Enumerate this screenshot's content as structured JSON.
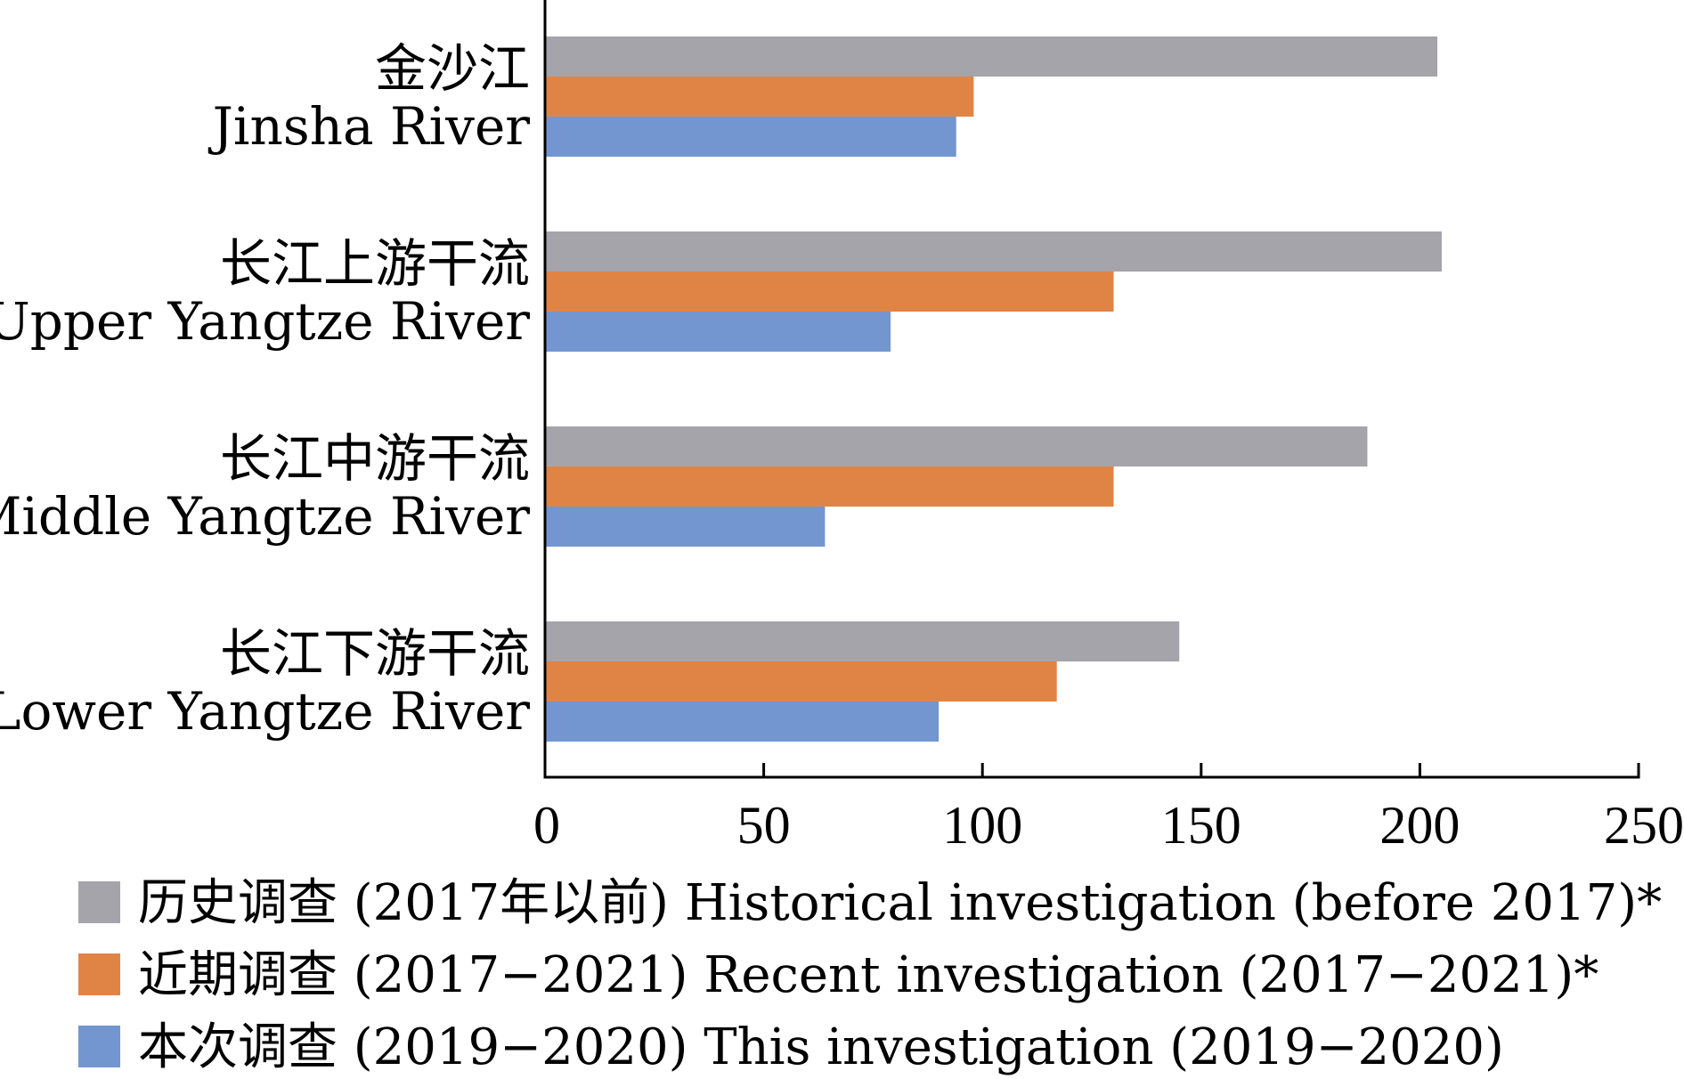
{
  "chart_data": {
    "type": "bar",
    "orientation": "horizontal",
    "categories": [
      {
        "zh": "金沙江",
        "en": "Jinsha River"
      },
      {
        "zh": "长江上游干流",
        "en": "Upper Yangtze River"
      },
      {
        "zh": "长江中游干流",
        "en": "Middle Yangtze River"
      },
      {
        "zh": "长江下游干流",
        "en": "Lower Yangtze River"
      }
    ],
    "series": [
      {
        "name": "历史调查 (2017年以前) Historical investigation (before 2017)*",
        "color": "#a5a4aa",
        "values": [
          204,
          205,
          188,
          145
        ]
      },
      {
        "name": "近期调查 (2017−2021) Recent investigation (2017−2021)*",
        "color": "#e08446",
        "values": [
          98,
          130,
          130,
          117
        ]
      },
      {
        "name": "本次调查 (2019−2020) This investigation (2019−2020)",
        "color": "#7396d0",
        "values": [
          94,
          79,
          64,
          90
        ]
      }
    ],
    "xlim": [
      0,
      250
    ],
    "xticks": [
      0,
      50,
      100,
      150,
      200,
      250
    ],
    "grid": false,
    "legend_position": "bottom"
  }
}
